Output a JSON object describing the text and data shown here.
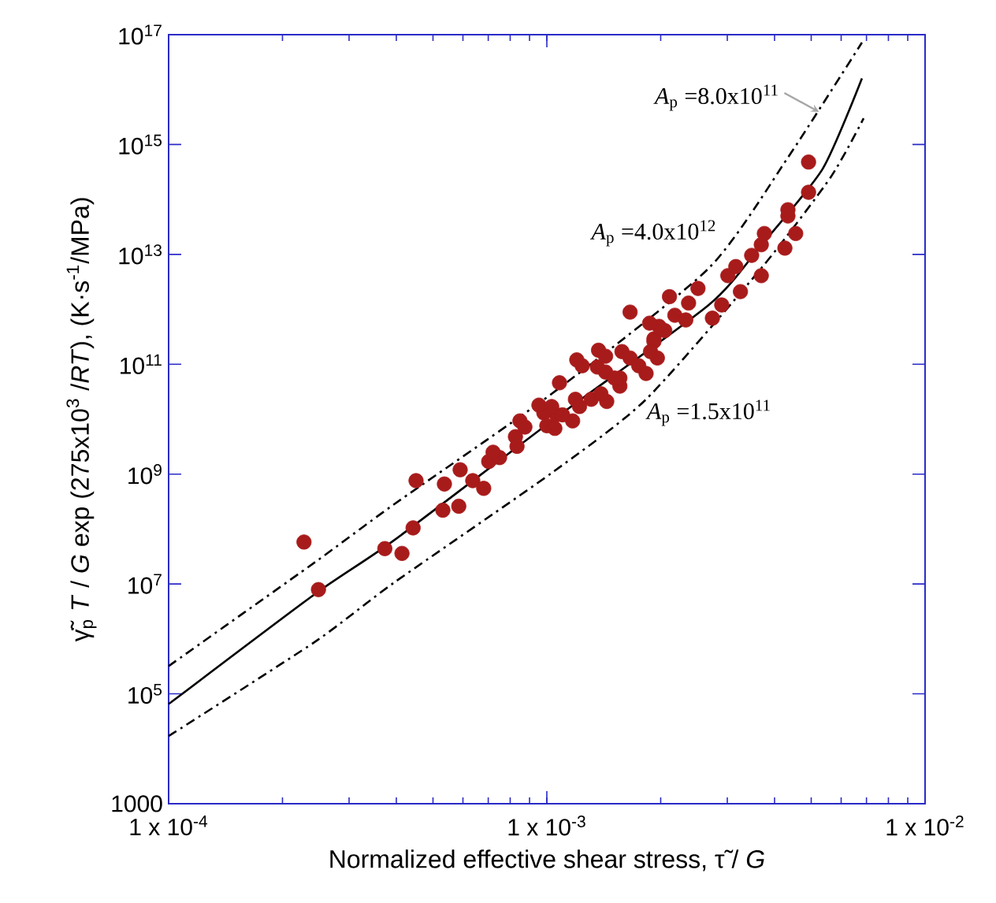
{
  "chart_data": {
    "type": "scatter",
    "log": "xy",
    "xlabel": "Normalized effective shear stress, τ̃ / *G*",
    "ylabel": "γ̃̇$_{p}$ *T* / *G* exp (275x10$^{3}$ /*RT*), (K·s$^{-1}$/MPa)",
    "xlim": [
      0.0001,
      0.01
    ],
    "xticks": [
      {
        "value": 0.0001,
        "label": "1 x 10$^{-4}$"
      },
      {
        "value": 0.001,
        "label": "1 x 10$^{-3}$"
      },
      {
        "value": 0.01,
        "label": "1 x 10$^{-2}$"
      }
    ],
    "ylim": [
      1000,
      1e+17
    ],
    "yticks": [
      1000,
      {
        "value": 100000.0,
        "label": "10$^{5}$"
      },
      {
        "value": 10000000.0,
        "label": "10$^{7}$"
      },
      {
        "value": 1000000000.0,
        "label": "10$^{9}$"
      },
      {
        "value": 100000000000.0,
        "label": "10$^{11}$"
      },
      {
        "value": 10000000000000.0,
        "label": "10$^{13}$"
      },
      {
        "value": 1000000000000000.0,
        "label": "10$^{15}$"
      },
      {
        "value": 1e+17,
        "label": "10$^{17}$"
      }
    ],
    "series": [
      {
        "type": "line",
        "color": "#000000",
        "line_style": "solid",
        "marker": "none",
        "x": [
          0.0001,
          0.000244,
          0.000394,
          0.00103,
          0.00268,
          0.00365,
          0.00536,
          0.00681
        ],
        "values": [
          65000,
          6600000,
          62000000,
          9300000000,
          1200000000000,
          13500000000000,
          360000000000000,
          16000000000000000
        ]
      },
      {
        "type": "line",
        "color": "#000000",
        "line_style": "dashed",
        "marker": "none",
        "x": [
          0.0001,
          0.000244,
          0.000394,
          0.00103,
          0.00268,
          0.00434,
          0.00681
        ],
        "values": [
          320000,
          25000000,
          280000000,
          29000000000,
          5600000000000,
          580000000000000,
          72000000000000000
        ]
      },
      {
        "type": "line",
        "color": "#000000",
        "line_style": "dashed",
        "marker": "none",
        "x": [
          0.0001,
          0.000244,
          0.000394,
          0.00103,
          0.00183,
          0.00369,
          0.00562,
          0.00688
        ],
        "values": [
          17000,
          890000,
          10500000,
          1050000000,
          23000000000,
          5600000000000,
          250000000000000,
          3000000000000000
        ]
      },
      {
        "color": "#a81b1b",
        "marker": "circle",
        "x": [
          0.000228,
          0.000249,
          0.000373,
          0.000414,
          0.000443,
          0.000451,
          0.000531,
          0.000536,
          0.000585,
          0.00059,
          0.000637,
          0.000681,
          0.000702,
          0.00075,
          0.000834,
          0.000875,
          0.000982,
          0.001,
          0.00106,
          0.00105,
          0.00117,
          0.00122,
          0.00131,
          0.00144,
          0.00124,
          0.00143,
          0.00143,
          0.00156,
          0.00156,
          0.00166,
          0.00183,
          0.00196,
          0.00192,
          0.00205,
          0.00198,
          0.000721,
          0.000826,
          0.000849,
          0.000953,
          0.00103,
          0.0011,
          0.00119,
          0.00108,
          0.0012,
          0.00137,
          0.00136,
          0.00139,
          0.00151,
          0.00158,
          0.00175,
          0.00166,
          0.00187,
          0.00192,
          0.00188,
          0.00211,
          0.00218,
          0.00237,
          0.00233,
          0.00251,
          0.00274,
          0.0029,
          0.00301,
          0.00316,
          0.00325,
          0.00348,
          0.00369,
          0.00369,
          0.00376,
          0.00426,
          0.00455,
          0.00434,
          0.00434,
          0.00492,
          0.00492
        ],
        "values": [
          58000000,
          7900000,
          44000000,
          36000000,
          105000000,
          760000000,
          220000000,
          660000000,
          260000000,
          1200000000,
          760000000,
          550000000,
          1700000000,
          2000000000,
          3200000000,
          7200000000,
          13000000000,
          7600000000,
          12000000000,
          6800000000,
          9300000000,
          17000000000,
          23000000000,
          21000000000,
          94000000000,
          140000000000,
          72000000000,
          40000000000,
          56000000000,
          130000000000,
          68000000000,
          130000000000,
          290000000000,
          410000000000,
          490000000000,
          2500000000,
          4800000000,
          9300000000,
          18000000000,
          17000000000,
          12000000000,
          23000000000,
          46000000000,
          120000000000,
          180000000000,
          89000000000,
          29000000000,
          56000000000,
          170000000000,
          94000000000,
          890000000000,
          560000000000,
          260000000000,
          170000000000,
          1700000000000,
          780000000000,
          1300000000000,
          640000000000,
          2400000000000,
          690000000000,
          1200000000000,
          4100000000000,
          6000000000000,
          2100000000000,
          9600000000000,
          4100000000000,
          15000000000000,
          24000000000000,
          13000000000000,
          24000000000000,
          50000000000000,
          65000000000000,
          135000000000000,
          480000000000000
        ]
      }
    ],
    "annotations": [
      "*A*$_{p}$ =8.0x10$^{11}$",
      "*A*$_{p}$ =4.0x10$^{12}$",
      "*A*$_{p}$ =1.5x10$^{11}$"
    ]
  }
}
